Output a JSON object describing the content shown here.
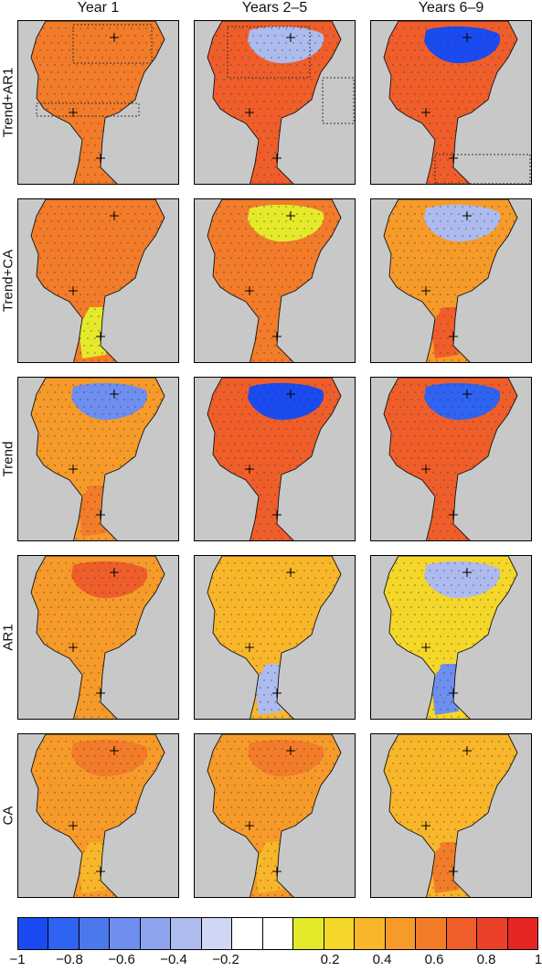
{
  "column_titles": [
    "Year 1",
    "Years 2–5",
    "Years 6–9"
  ],
  "row_labels": [
    "Trend+AR1",
    "Trend+CA",
    "Trend",
    "AR1",
    "CA"
  ],
  "panels": [
    {
      "row": "Trend+AR1",
      "col": "Year 1",
      "north": 0.55,
      "mid": 0.6,
      "south": 0.55,
      "boxes": [
        "subpolar",
        "tropical"
      ]
    },
    {
      "row": "Trend+AR1",
      "col": "Years 2–5",
      "north": -0.4,
      "mid": 0.7,
      "south": 0.75,
      "boxes": [
        "subpolar-west",
        "east-canary"
      ]
    },
    {
      "row": "Trend+AR1",
      "col": "Years 6–9",
      "north": -0.9,
      "mid": 0.7,
      "south": 0.75,
      "boxes": [
        "south-atlantic"
      ]
    },
    {
      "row": "Trend+CA",
      "col": "Year 1",
      "north": 0.6,
      "mid": 0.55,
      "south": 0.15,
      "boxes": []
    },
    {
      "row": "Trend+CA",
      "col": "Years 2–5",
      "north": 0.15,
      "mid": 0.6,
      "south": 0.6,
      "boxes": []
    },
    {
      "row": "Trend+CA",
      "col": "Years 6–9",
      "north": -0.3,
      "mid": 0.5,
      "south": 0.7,
      "boxes": []
    },
    {
      "row": "Trend",
      "col": "Year 1",
      "north": -0.6,
      "mid": 0.5,
      "south": 0.6,
      "boxes": []
    },
    {
      "row": "Trend",
      "col": "Years 2–5",
      "north": -0.9,
      "mid": 0.75,
      "south": 0.75,
      "boxes": []
    },
    {
      "row": "Trend",
      "col": "Years 6–9",
      "north": -0.85,
      "mid": 0.75,
      "south": 0.75,
      "boxes": []
    },
    {
      "row": "AR1",
      "col": "Year 1",
      "north": 0.65,
      "mid": 0.45,
      "south": 0.45,
      "boxes": []
    },
    {
      "row": "AR1",
      "col": "Years 2–5",
      "north": 0.4,
      "mid": 0.3,
      "south": -0.4,
      "boxes": []
    },
    {
      "row": "AR1",
      "col": "Years 6–9",
      "north": -0.3,
      "mid": 0.25,
      "south": -0.6,
      "boxes": []
    },
    {
      "row": "CA",
      "col": "Year 1",
      "north": 0.6,
      "mid": 0.5,
      "south": 0.3,
      "boxes": []
    },
    {
      "row": "CA",
      "col": "Years 2–5",
      "north": 0.55,
      "mid": 0.45,
      "south": 0.3,
      "boxes": []
    },
    {
      "row": "CA",
      "col": "Years 6–9",
      "north": 0.35,
      "mid": 0.3,
      "south": 0.6,
      "boxes": []
    }
  ],
  "colorbar": {
    "colors": [
      "#1a4bf0",
      "#2f63f2",
      "#4c78ee",
      "#6e8ef0",
      "#8fa4ee",
      "#adbbee",
      "#cfd7f4",
      "#ffffff",
      "#ffffff",
      "#e4ea2a",
      "#f5d72a",
      "#f8b62a",
      "#f69a2a",
      "#f27c2a",
      "#ef5e2a",
      "#ea4128",
      "#e52622"
    ],
    "tick_labels": [
      "−1",
      "−0.8",
      "−0.6",
      "−0.4",
      "−0.2",
      "0.2",
      "0.4",
      "0.6",
      "0.8",
      "1"
    ],
    "tick_values": [
      -1,
      -0.8,
      -0.6,
      -0.4,
      -0.2,
      0.2,
      0.4,
      0.6,
      0.8,
      1
    ],
    "range": [
      -1,
      1
    ]
  }
}
